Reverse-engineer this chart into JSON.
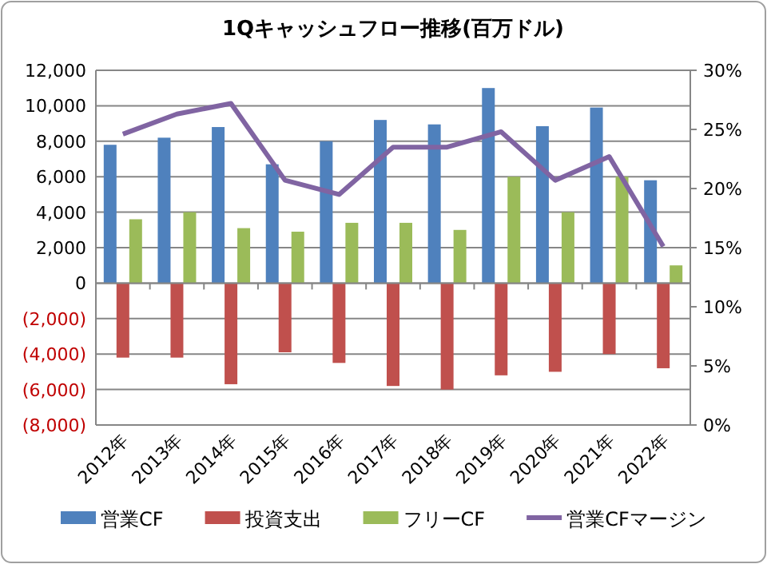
{
  "chart_data": {
    "type": "bar",
    "title": "1Qキャッシュフロー推移(百万ドル)",
    "categories": [
      "2012年",
      "2013年",
      "2014年",
      "2015年",
      "2016年",
      "2017年",
      "2018年",
      "2019年",
      "2020年",
      "2021年",
      "2022年"
    ],
    "series": [
      {
        "name": "営業CF",
        "color": "#4f81bd",
        "values": [
          7800,
          8200,
          8800,
          6700,
          8000,
          9200,
          8950,
          11000,
          8850,
          9900,
          5800
        ]
      },
      {
        "name": "投資支出",
        "color": "#c0504d",
        "values": [
          -4200,
          -4200,
          -5700,
          -3900,
          -4500,
          -5800,
          -6000,
          -5200,
          -5000,
          -4000,
          -4800
        ]
      },
      {
        "name": "フリーCF",
        "color": "#9bbb59",
        "values": [
          3600,
          4000,
          3100,
          2900,
          3400,
          3400,
          3000,
          6000,
          4000,
          6000,
          1000
        ]
      },
      {
        "name": "営業CFマージン",
        "color": "#8064a2",
        "type": "line",
        "axis": "y2",
        "values": [
          24.6,
          26.3,
          27.2,
          20.7,
          19.5,
          23.5,
          23.5,
          24.8,
          20.7,
          22.7,
          15.1
        ]
      }
    ],
    "ylim": [
      -8000,
      12000
    ],
    "yticks": [
      {
        "value": -8000,
        "label": "(8,000)"
      },
      {
        "value": -6000,
        "label": "(6,000)"
      },
      {
        "value": -4000,
        "label": "(4,000)"
      },
      {
        "value": -2000,
        "label": "(2,000)"
      },
      0,
      {
        "value": 2000,
        "label": "2,000"
      },
      {
        "value": 4000,
        "label": "4,000"
      },
      {
        "value": 6000,
        "label": "6,000"
      },
      {
        "value": 8000,
        "label": "8,000"
      },
      {
        "value": 10000,
        "label": "10,000"
      },
      {
        "value": 12000,
        "label": "12,000"
      }
    ],
    "y2lim": [
      0,
      30
    ],
    "y2ticks": [
      {
        "value": 0,
        "label": "0%"
      },
      {
        "value": 5,
        "label": "5%"
      },
      {
        "value": 10,
        "label": "10%"
      },
      {
        "value": 15,
        "label": "15%"
      },
      {
        "value": 20,
        "label": "20%"
      },
      {
        "value": 25,
        "label": "25%"
      },
      {
        "value": 30,
        "label": "30%"
      }
    ],
    "grid": "y",
    "legend": "bottom",
    "marker": "none"
  }
}
